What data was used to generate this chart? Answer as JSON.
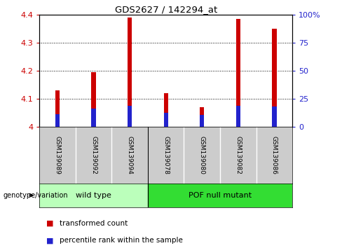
{
  "title": "GDS2627 / 142294_at",
  "samples": [
    "GSM139089",
    "GSM139092",
    "GSM139094",
    "GSM139078",
    "GSM139080",
    "GSM139082",
    "GSM139086"
  ],
  "transformed_counts": [
    4.13,
    4.195,
    4.39,
    4.12,
    4.07,
    4.385,
    4.35
  ],
  "percentile_ranks_abs": [
    4.045,
    4.065,
    4.075,
    4.048,
    4.042,
    4.075,
    4.072
  ],
  "bar_base": 4.0,
  "ylim": [
    4.0,
    4.4
  ],
  "yticks": [
    4.0,
    4.1,
    4.2,
    4.3,
    4.4
  ],
  "right_yticks_pct": [
    0,
    25,
    50,
    75,
    100
  ],
  "right_ylabels": [
    "0",
    "25",
    "50",
    "75",
    "100%"
  ],
  "red_color": "#cc0000",
  "blue_color": "#2222cc",
  "wild_type_label": "wild type",
  "pof_label": "POF null mutant",
  "genotype_label": "genotype/variation",
  "legend_red_label": "transformed count",
  "legend_blue_label": "percentile rank within the sample",
  "wild_type_bg": "#bbffbb",
  "pof_bg": "#33dd33",
  "tick_label_area_bg": "#cccccc",
  "bar_width": 0.12,
  "n_wild": 3,
  "n_pof": 4
}
